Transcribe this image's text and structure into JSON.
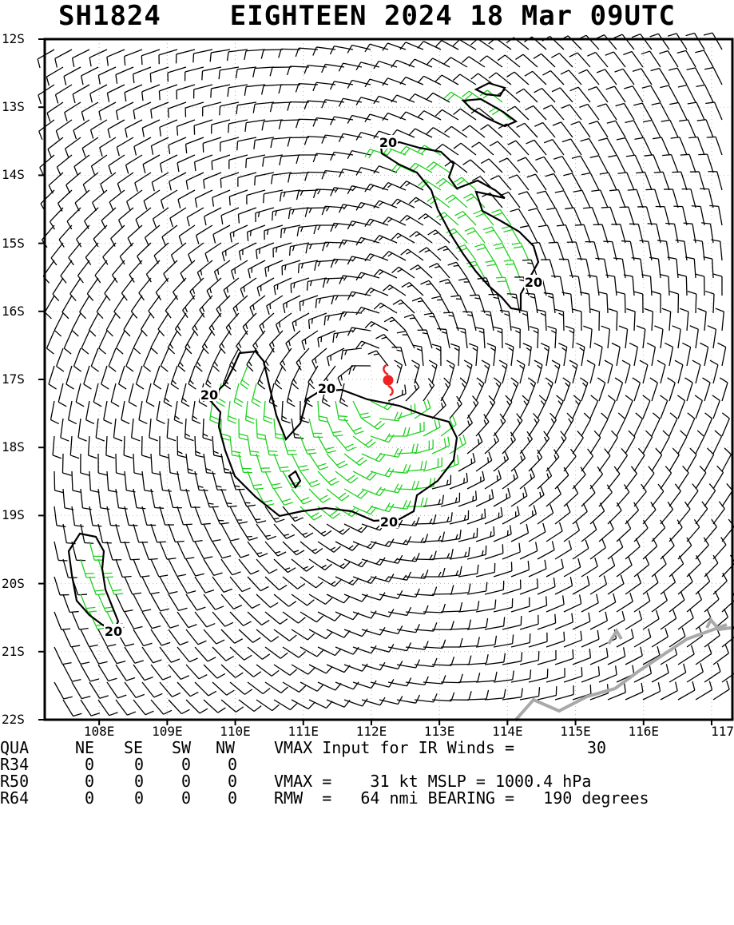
{
  "title": {
    "storm_id": "SH1824",
    "storm_name_time": "EIGHTEEN 2024 18 Mar 09UTC"
  },
  "map": {
    "lat_labels": [
      "12S",
      "13S",
      "14S",
      "15S",
      "16S",
      "17S",
      "18S",
      "19S",
      "20S",
      "21S",
      "22S"
    ],
    "lon_labels": [
      "108E",
      "109E",
      "110E",
      "111E",
      "112E",
      "113E",
      "114E",
      "115E",
      "116E",
      "117"
    ],
    "contour_label": "20",
    "storm_center": {
      "lon": 112.05,
      "lat": -17.05
    },
    "colors": {
      "barbs_low": "#000000",
      "barbs_high": "#1fd11f",
      "contour": "#000000",
      "coast": "#a9a9a9",
      "storm_symbol": "#ee2222"
    },
    "icons": {
      "storm": "tropical-cyclone-icon"
    }
  },
  "table": {
    "header": {
      "qua": "QUA",
      "ne": "NE",
      "se": "SE",
      "sw": "SW",
      "nw": "NW",
      "vmax_input_label": "VMAX Input for IR Winds =",
      "vmax_input_value": "30"
    },
    "rows": [
      {
        "name": "R34",
        "ne": "0",
        "se": "0",
        "sw": "0",
        "nw": "0",
        "extra": ""
      },
      {
        "name": "R50",
        "ne": "0",
        "se": "0",
        "sw": "0",
        "nw": "0",
        "extra": "VMAX =    31 kt MSLP = 1000.4 hPa"
      },
      {
        "name": "R64",
        "ne": "0",
        "se": "0",
        "sw": "0",
        "nw": "0",
        "extra": "RMW  =   64 nmi BEARING =   190 degrees"
      }
    ]
  }
}
